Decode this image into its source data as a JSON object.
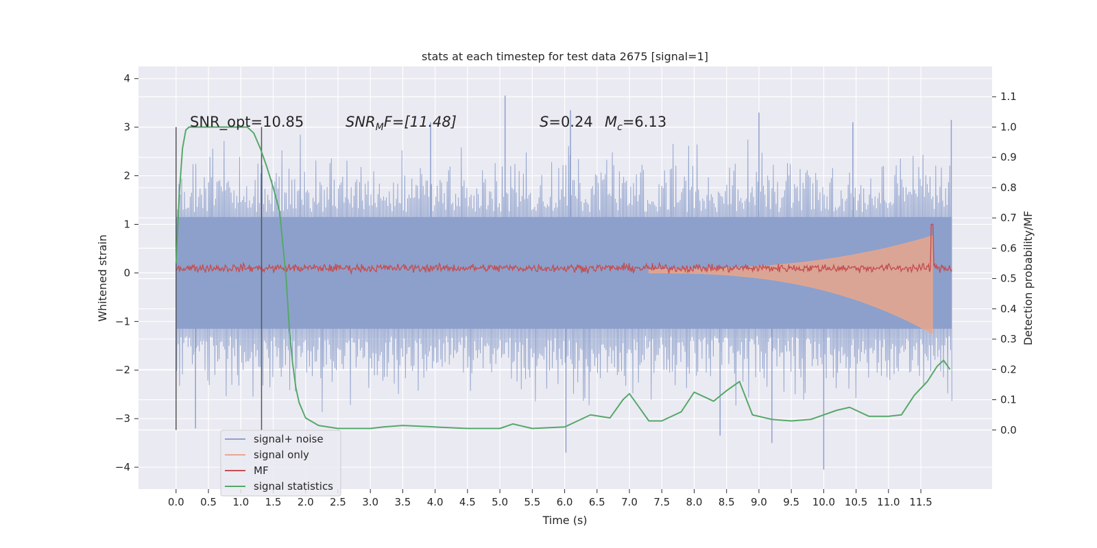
{
  "chart_data": {
    "type": "line",
    "title": "stats at each timestep for test data 2675 [signal=1]",
    "xlabel": "Time (s)",
    "ylabel": "Whitened strain",
    "y2label": "Detection probability/MF",
    "xlim": [
      -0.58,
      12.6
    ],
    "ylim": [
      -4.45,
      4.25
    ],
    "y2lim": [
      -0.195,
      1.2
    ],
    "x_ticks": [
      "0.0",
      "0.5",
      "1.0",
      "1.5",
      "2.0",
      "2.5",
      "3.0",
      "3.5",
      "4.0",
      "4.5",
      "5.0",
      "5.5",
      "6.0",
      "6.5",
      "7.0",
      "7.5",
      "8.0",
      "8.5",
      "9.0",
      "9.5",
      "10.0",
      "10.5",
      "11.0",
      "11.5"
    ],
    "y_ticks": [
      "−4",
      "−3",
      "−2",
      "−1",
      "0",
      "1",
      "2",
      "3",
      "4"
    ],
    "y2_ticks": [
      "0.0",
      "0.1",
      "0.2",
      "0.3",
      "0.4",
      "0.5",
      "0.6",
      "0.7",
      "0.8",
      "0.9",
      "1.0",
      "1.1"
    ],
    "grid": true,
    "legend_position": "lower-left",
    "annotations": {
      "snr_opt": "SNR_opt=10.85",
      "snr_mf_main": "SNR",
      "snr_mf_sub": "M",
      "snr_mf_rest": "F=[11.48]",
      "s_var": "S",
      "s_rest": "=0.24",
      "mc_var": "M",
      "mc_sub": "c",
      "mc_rest": "=6.13"
    },
    "vlines": [
      0.0,
      1.32
    ],
    "series": [
      {
        "name": "signal+ noise",
        "color": "#8da0cb",
        "kind": "noise",
        "x_range": [
          0.0,
          11.98
        ],
        "envelope_core": 1.15,
        "peaks_up": [
          [
            5.08,
            3.65
          ],
          [
            6.09,
            3.35
          ],
          [
            11.97,
            3.15
          ],
          [
            3.93,
            3.1
          ],
          [
            9.0,
            3.3
          ],
          [
            10.45,
            3.1
          ]
        ],
        "peaks_down": [
          [
            10.0,
            -4.05
          ],
          [
            6.02,
            -3.7
          ],
          [
            9.2,
            -3.5
          ],
          [
            8.4,
            -3.35
          ],
          [
            0.3,
            -3.2
          ]
        ]
      },
      {
        "name": "signal only",
        "color": "#e8a68c",
        "kind": "chirp",
        "x_range": [
          7.3,
          11.68
        ],
        "amp_end": 1.25
      },
      {
        "name": "MF",
        "color": "#c44e52",
        "kind": "mf",
        "x_range": [
          0.0,
          11.98
        ],
        "baseline": 0.1,
        "noise_amp": 0.07,
        "peak": [
          11.68,
          1.0
        ]
      },
      {
        "name": "signal statistics",
        "color": "#55a868",
        "kind": "line",
        "axis": "right",
        "x": [
          0.0,
          0.05,
          0.1,
          0.15,
          0.2,
          0.3,
          0.5,
          0.8,
          1.0,
          1.1,
          1.2,
          1.3,
          1.4,
          1.5,
          1.6,
          1.7,
          1.75,
          1.8,
          1.85,
          1.9,
          2.0,
          2.2,
          2.5,
          3.0,
          3.2,
          3.5,
          4.0,
          4.5,
          5.0,
          5.2,
          5.5,
          6.0,
          6.2,
          6.4,
          6.7,
          6.9,
          7.0,
          7.1,
          7.3,
          7.5,
          7.8,
          8.0,
          8.3,
          8.5,
          8.7,
          8.9,
          9.2,
          9.5,
          9.8,
          10.2,
          10.4,
          10.7,
          11.0,
          11.2,
          11.4,
          11.6,
          11.75,
          11.85,
          11.95
        ],
        "y": [
          0.55,
          0.78,
          0.93,
          0.99,
          1.0,
          1.0,
          1.0,
          1.0,
          1.0,
          1.0,
          0.98,
          0.93,
          0.87,
          0.8,
          0.72,
          0.5,
          0.33,
          0.22,
          0.14,
          0.09,
          0.04,
          0.015,
          0.005,
          0.005,
          0.01,
          0.015,
          0.01,
          0.005,
          0.005,
          0.02,
          0.005,
          0.01,
          0.03,
          0.05,
          0.04,
          0.1,
          0.12,
          0.09,
          0.03,
          0.03,
          0.06,
          0.125,
          0.095,
          0.13,
          0.16,
          0.05,
          0.035,
          0.03,
          0.035,
          0.065,
          0.075,
          0.045,
          0.045,
          0.05,
          0.115,
          0.16,
          0.21,
          0.23,
          0.2
        ]
      }
    ]
  }
}
